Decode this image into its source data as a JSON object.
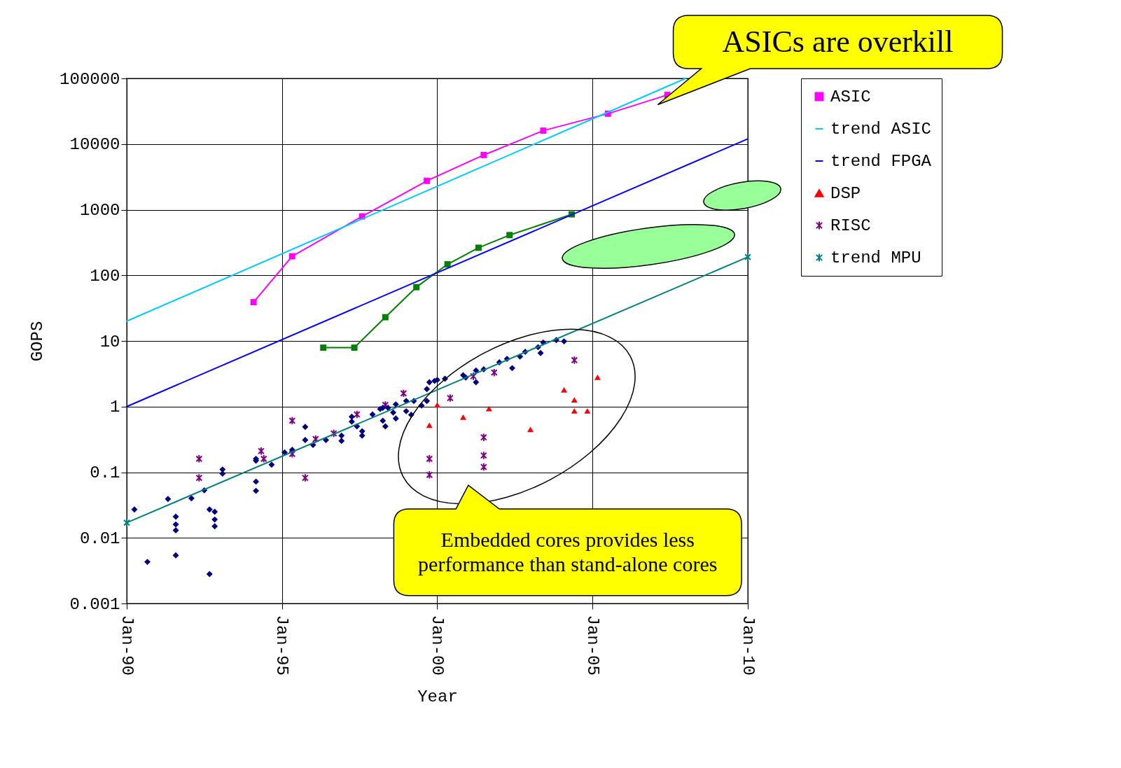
{
  "chart_data": {
    "type": "line",
    "xlabel": "Year",
    "ylabel": "GOPS",
    "log": true,
    "grid": true,
    "legend": "right",
    "xlim": [
      "1990-01",
      "2010-01"
    ],
    "xticks": [
      {
        "value": "1990-01",
        "label": "Jan-90"
      },
      {
        "value": "1995-01",
        "label": "Jan-95"
      },
      {
        "value": "2000-01",
        "label": "Jan-00"
      },
      {
        "value": "2005-01",
        "label": "Jan-05"
      },
      {
        "value": "2010-01",
        "label": "Jan-10"
      }
    ],
    "ylim": [
      0.001,
      100000
    ],
    "yticks": [
      0.001,
      0.01,
      0.1,
      1,
      10,
      100,
      1000,
      10000,
      100000
    ],
    "annotations": [
      "ASICs are overkill",
      "Embedded cores provides less performance than stand-alone cores"
    ],
    "series": [
      {
        "name": "ASIC",
        "type": "line",
        "color": "#ff00ff",
        "marker": "square",
        "x": [
          "1994-02",
          "1995-05",
          "1997-08",
          "1999-09",
          "2001-07",
          "2003-06",
          "2005-07",
          "2007-06"
        ],
        "values": [
          39,
          195,
          790,
          2750,
          6800,
          16000,
          29000,
          56000
        ]
      },
      {
        "name": "trend ASIC",
        "type": "line",
        "color": "#00ccff",
        "marker": "none",
        "x": [
          "1990-01",
          "2008-01"
        ],
        "values": [
          20,
          100000
        ]
      },
      {
        "type": "line",
        "color": "#008000",
        "marker": "square",
        "x": [
          "1996-05",
          "1997-05",
          "1998-05",
          "1999-05",
          "2000-05",
          "2001-05",
          "2002-05",
          "2004-05"
        ],
        "values": [
          7.9,
          7.9,
          23,
          66,
          147,
          263,
          410,
          850
        ]
      },
      {
        "name": "trend FPGA",
        "type": "line",
        "color": "#0000ff",
        "marker": "none",
        "x": [
          "1990-01",
          "2010-01"
        ],
        "values": [
          1,
          12000
        ]
      },
      {
        "name": "DSP",
        "type": "scatter",
        "color": "#ff0000",
        "marker": "triangle",
        "x": [
          "2000-01",
          "1999-10",
          "2000-11",
          "2001-09",
          "2003-01",
          "2004-02",
          "2004-06",
          "2004-06",
          "2004-11",
          "2005-03"
        ],
        "values": [
          1.06,
          0.52,
          0.69,
          0.93,
          0.45,
          1.8,
          1.27,
          0.86,
          0.86,
          2.8
        ]
      },
      {
        "name": "RISC",
        "type": "scatter",
        "color": "#800080",
        "marker": "cross",
        "x": [
          "1992-05",
          "1992-05",
          "1994-05",
          "1994-06",
          "1995-05",
          "1995-05",
          "1995-10",
          "1996-02",
          "1996-09",
          "1997-06",
          "1998-05",
          "1998-12",
          "1999-10",
          "1999-10",
          "2000-06",
          "2001-03",
          "2001-07",
          "2001-07",
          "2001-07",
          "2001-11",
          "2004-06"
        ],
        "values": [
          0.16,
          0.082,
          0.21,
          0.16,
          0.61,
          0.19,
          0.082,
          0.32,
          0.39,
          0.76,
          1.06,
          1.59,
          0.16,
          0.091,
          1.35,
          2.9,
          0.34,
          0.18,
          0.12,
          3.3,
          5.1
        ]
      },
      {
        "type": "scatter",
        "color": "#000080",
        "marker": "diamond",
        "x": [
          "1990-04",
          "1990-09",
          "1991-05",
          "1991-08",
          "1991-08",
          "1991-08",
          "1991-08",
          "1992-02",
          "1992-07",
          "1992-09",
          "1992-11",
          "1992-11",
          "1992-11",
          "1992-09",
          "1993-02",
          "1993-02",
          "1994-03",
          "1994-03",
          "1994-03",
          "1994-03",
          "1994-09",
          "1995-02",
          "1995-05",
          "1995-10",
          "1995-10",
          "1996-01",
          "1996-06",
          "1996-12",
          "1996-12",
          "1997-04",
          "1997-04",
          "1997-06",
          "1997-08",
          "1997-08",
          "1997-12",
          "1998-04",
          "1998-04",
          "1998-05",
          "1998-06",
          "1998-08",
          "1998-09",
          "1998-09",
          "1999-01",
          "1999-01",
          "1999-03",
          "1999-04",
          "1999-07",
          "1999-09",
          "1999-09",
          "1999-10",
          "1999-12",
          "2000-01",
          "2000-04",
          "1998-03",
          "2000-11",
          "2000-12",
          "2001-04",
          "2001-04",
          "2001-07",
          "2002-01",
          "2002-04",
          "2002-06",
          "2002-09",
          "2002-11",
          "2003-04",
          "2003-05",
          "2003-06",
          "2003-11",
          "2004-02"
        ],
        "values": [
          0.027,
          0.0043,
          0.039,
          0.021,
          0.016,
          0.013,
          0.0054,
          0.04,
          0.053,
          0.027,
          0.025,
          0.019,
          0.015,
          0.0028,
          0.11,
          0.095,
          0.16,
          0.15,
          0.072,
          0.052,
          0.13,
          0.2,
          0.22,
          0.49,
          0.31,
          0.26,
          0.31,
          0.36,
          0.3,
          0.7,
          0.59,
          0.5,
          0.42,
          0.36,
          0.76,
          0.96,
          0.61,
          0.5,
          0.96,
          0.81,
          1.08,
          0.66,
          1.22,
          0.85,
          0.75,
          1.22,
          1.04,
          1.22,
          1.85,
          2.35,
          2.46,
          2.55,
          2.66,
          0.92,
          3.01,
          2.77,
          3.55,
          2.35,
          3.69,
          4.72,
          5.33,
          3.85,
          5.79,
          6.82,
          8.04,
          6.55,
          9.46,
          10.3,
          9.85
        ]
      },
      {
        "name": "trend MPU",
        "type": "line",
        "color": "#008080",
        "marker": "cross",
        "x": [
          "1990-01",
          "2010-01"
        ],
        "values": [
          0.017,
          190
        ]
      }
    ]
  }
}
